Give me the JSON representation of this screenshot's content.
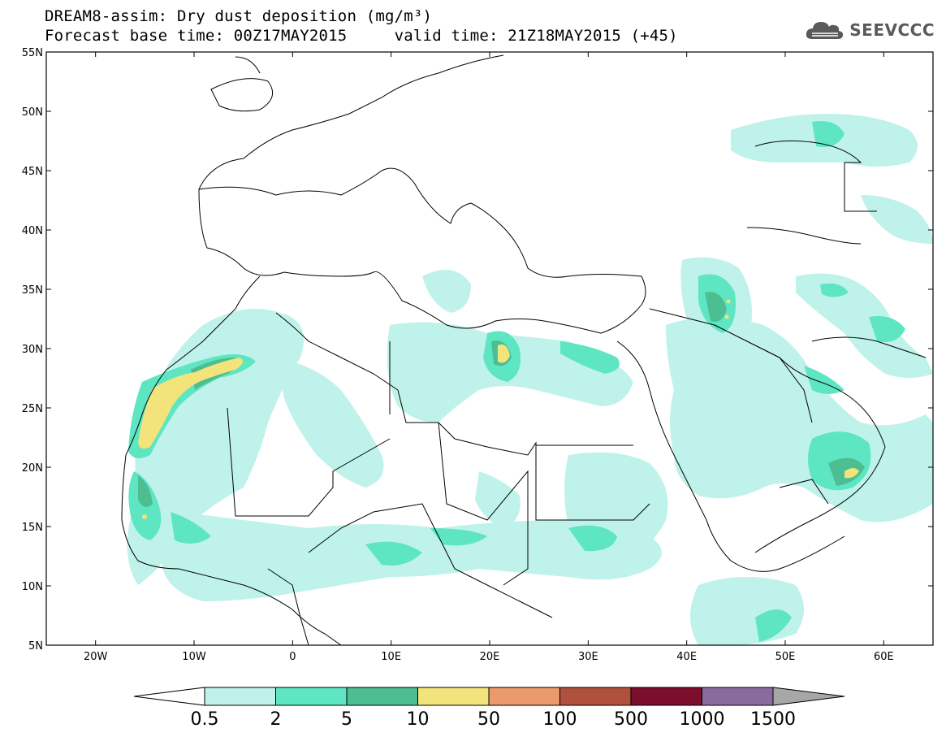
{
  "title": {
    "line1": "DREAM8-assim: Dry dust deposition (mg/m³)",
    "line2": "Forecast base time: 00Z17MAY2015     valid time: 21Z18MAY2015 (+45)"
  },
  "logo": {
    "text": "SEEVCCC",
    "icon": "cloud-icon"
  },
  "map": {
    "lon_range": [
      -25,
      65
    ],
    "lat_range": [
      5,
      55
    ],
    "lat_ticks": [
      "55N",
      "50N",
      "45N",
      "40N",
      "35N",
      "30N",
      "25N",
      "20N",
      "15N",
      "10N",
      "5N"
    ],
    "lon_ticks": [
      "20W",
      "10W",
      "0",
      "10E",
      "20E",
      "30E",
      "40E",
      "50E",
      "60E"
    ]
  },
  "colorbar": {
    "labels": [
      "0.5",
      "2",
      "5",
      "10",
      "50",
      "100",
      "500",
      "1000",
      "1500"
    ],
    "colors": [
      "#bff2ea",
      "#5ee6c3",
      "#4dbd92",
      "#f2e37a",
      "#ea9a6c",
      "#b0503d",
      "#7c0d2d",
      "#8b6b9e"
    ],
    "left_triangle_color": "#ffffff",
    "right_triangle_color": "#a7a7a7"
  }
}
